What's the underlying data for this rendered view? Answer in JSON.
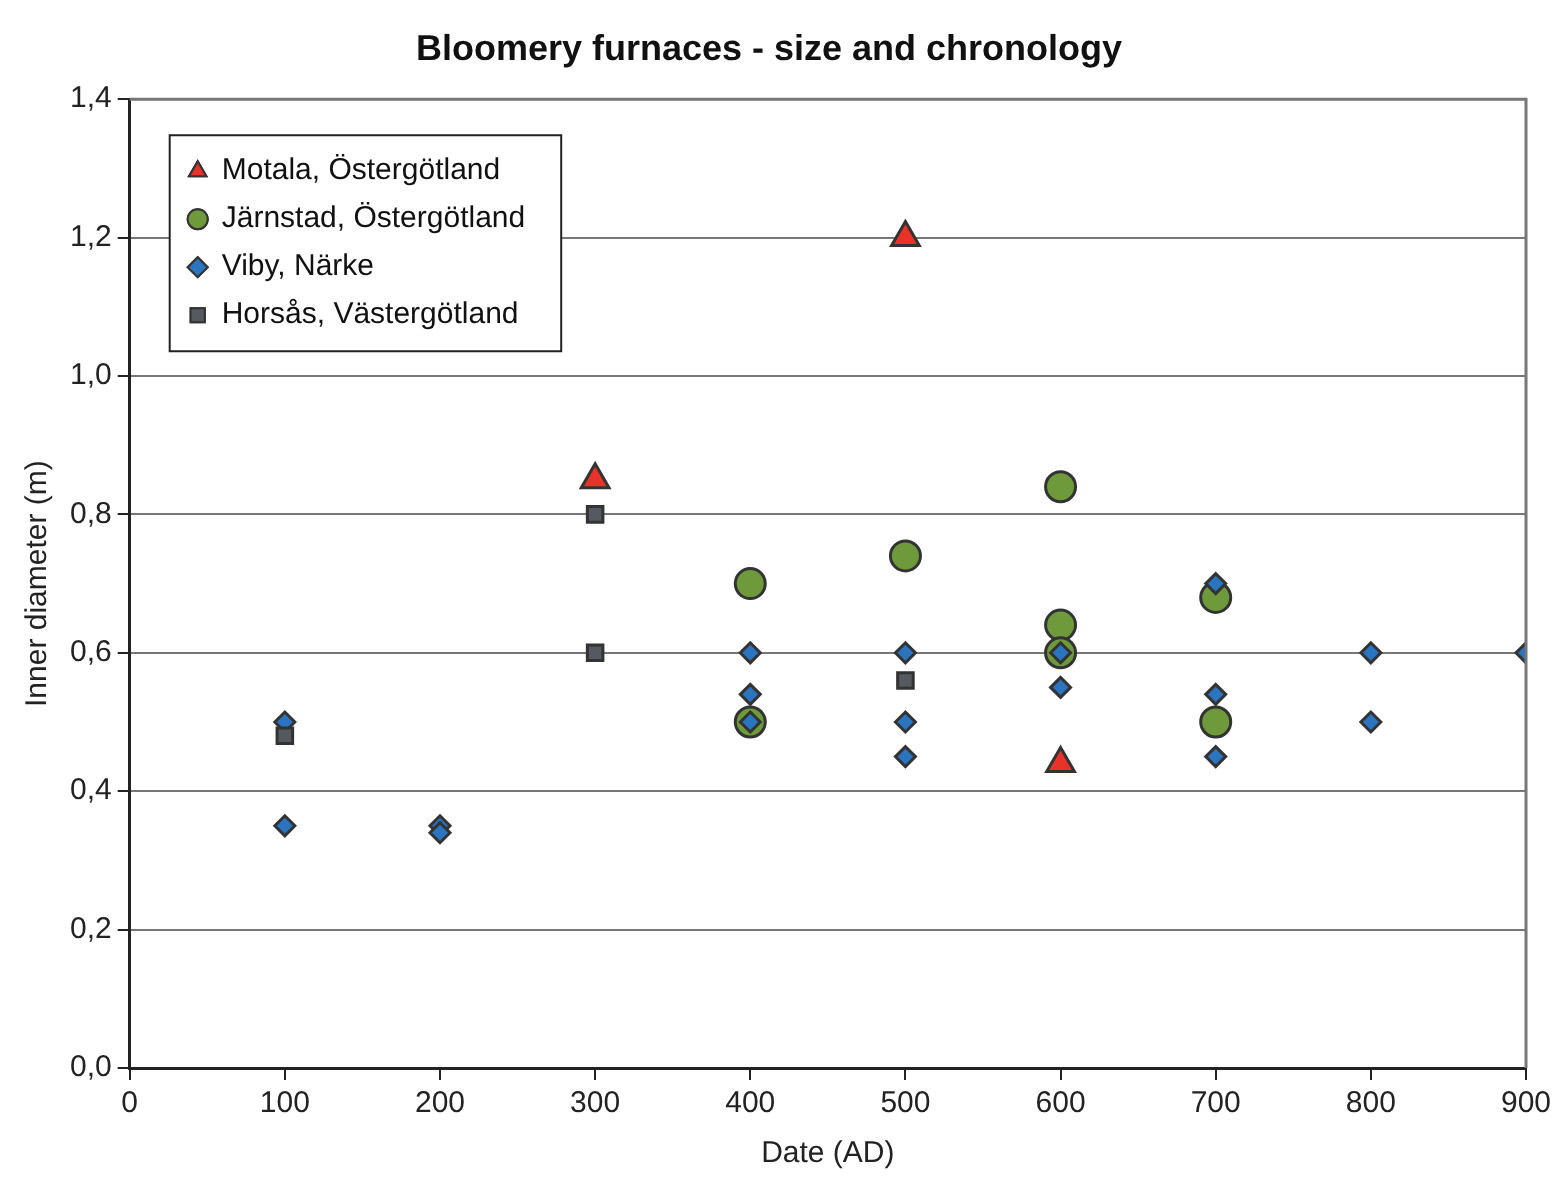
{
  "chart_data": {
    "type": "scatter",
    "title": "Bloomery furnaces - size and chronology",
    "xlabel": "Date (AD)",
    "ylabel": "Inner diameter (m)",
    "xlim": [
      0,
      900
    ],
    "xticks": [
      0,
      100,
      200,
      300,
      400,
      500,
      600,
      700,
      800,
      900
    ],
    "ylim": [
      0,
      1.4
    ],
    "yticks": [
      {
        "value": 0,
        "label": "0,0"
      },
      {
        "value": 0.2,
        "label": "0,2"
      },
      {
        "value": 0.4,
        "label": "0,4"
      },
      {
        "value": 0.6,
        "label": "0,6"
      },
      {
        "value": 0.8,
        "label": "0,8"
      },
      {
        "value": 1.0,
        "label": "1,0"
      },
      {
        "value": 1.2,
        "label": "1,2"
      },
      {
        "value": 1.4,
        "label": "1,4"
      }
    ],
    "grid": "y",
    "legend": "top left",
    "series": [
      {
        "name": "Motala, Östergötland",
        "color": "#e8322a",
        "marker": "triangle",
        "x": [
          300,
          500,
          600
        ],
        "values": [
          0.85,
          1.2,
          0.44
        ]
      },
      {
        "name": "Järnstad, Östergötland",
        "color": "#6e9a3c",
        "marker": "circle",
        "x": [
          400,
          400,
          500,
          600,
          600,
          600,
          700,
          700
        ],
        "values": [
          0.7,
          0.5,
          0.74,
          0.84,
          0.64,
          0.6,
          0.68,
          0.5
        ]
      },
      {
        "name": "Viby, Närke",
        "color": "#2a74c0",
        "marker": "diamond",
        "x": [
          100,
          100,
          200,
          200,
          400,
          400,
          400,
          500,
          500,
          500,
          600,
          600,
          700,
          700,
          700,
          800,
          800,
          900
        ],
        "values": [
          0.5,
          0.35,
          0.35,
          0.34,
          0.6,
          0.54,
          0.5,
          0.6,
          0.5,
          0.45,
          0.6,
          0.55,
          0.7,
          0.54,
          0.45,
          0.6,
          0.5,
          0.6
        ]
      },
      {
        "name": "Horsås, Västergötland",
        "color": "#555a60",
        "marker": "square",
        "x": [
          100,
          300,
          300,
          500
        ],
        "values": [
          0.48,
          0.8,
          0.6,
          0.56
        ]
      }
    ]
  }
}
